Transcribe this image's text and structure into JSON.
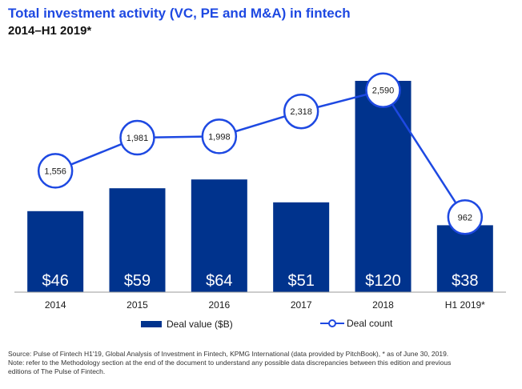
{
  "header": {
    "title": "Total investment activity (VC, PE and M&A) in fintech",
    "subtitle": "2014–H1 2019*"
  },
  "colors": {
    "bar": "#00338d",
    "line": "#1e49e2",
    "title": "#1e49e2"
  },
  "chart_data": {
    "type": "bar",
    "title": "Total investment activity (VC, PE and M&A) in fintech",
    "subtitle": "2014–H1 2019*",
    "categories": [
      "2014",
      "2015",
      "2016",
      "2017",
      "2018",
      "H1 2019*"
    ],
    "series": [
      {
        "name": "Deal value ($B)",
        "type": "bar",
        "values": [
          46,
          59,
          64,
          51,
          120,
          38
        ],
        "labels": [
          "$46",
          "$59",
          "$64",
          "$51",
          "$120",
          "$38"
        ]
      },
      {
        "name": "Deal count",
        "type": "line",
        "values": [
          1556,
          1981,
          1998,
          2318,
          2590,
          962
        ],
        "labels": [
          "1,556",
          "1,981",
          "1,998",
          "2,318",
          "2,590",
          "962"
        ]
      }
    ],
    "ylim_bar": [
      0,
      120
    ],
    "ylim_line": [
      0,
      2700
    ],
    "grid": false,
    "legend_position": "bottom"
  },
  "legend": {
    "bar_label": "Deal value ($B)",
    "line_label": "Deal count"
  },
  "source": {
    "line1": "Source: Pulse of Fintech H1'19, Global Analysis of Investment in Fintech, KPMG International (data provided by PitchBook), * as of June 30, 2019.",
    "line2": "Note: refer to the Methodology section at the end of the document to understand any possible data discrepancies between this edition and previous",
    "line3": "editions of The Pulse of Fintech."
  }
}
